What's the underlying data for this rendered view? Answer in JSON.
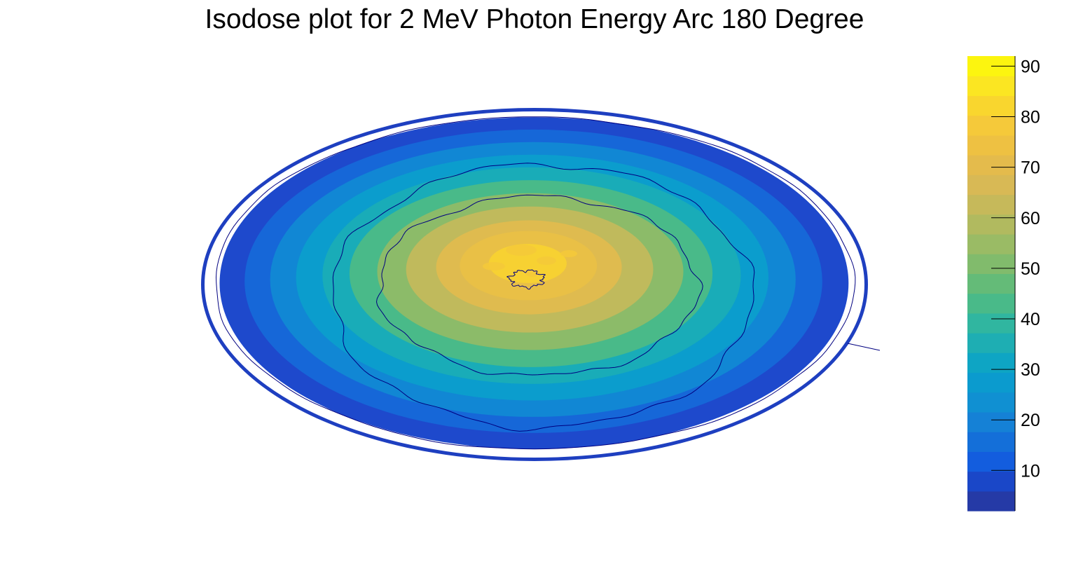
{
  "chart_data": {
    "type": "heatmap",
    "title": "Isodose plot for 2 MeV Photon Energy Arc 180 Degree",
    "xlabel": "",
    "ylabel": "",
    "zlim": [
      2,
      92
    ],
    "color_scale_ticks": [
      10,
      20,
      30,
      40,
      50,
      60,
      70,
      80,
      90
    ],
    "palette": [
      "#253aa6",
      "#1a47c8",
      "#135dde",
      "#146fd9",
      "#1581d6",
      "#1090d2",
      "#0b9bce",
      "#0ea5c4",
      "#1eaeb3",
      "#30b6a0",
      "#49ba89",
      "#64bb78",
      "#81bb6c",
      "#9abb65",
      "#b1ba5f",
      "#c6b95a",
      "#d8b955",
      "#e4bb4c",
      "#eec142",
      "#f5c93a",
      "#f9d62e",
      "#fbe622",
      "#fcf50f"
    ],
    "dose_rings": [
      {
        "value": 8,
        "color": "#1e49cc"
      },
      {
        "value": 16,
        "color": "#1667d8"
      },
      {
        "value": 24,
        "color": "#1187d4"
      },
      {
        "value": 32,
        "color": "#0b9dcd"
      },
      {
        "value": 40,
        "color": "#19acb8"
      },
      {
        "value": 48,
        "color": "#49ba89"
      },
      {
        "value": 56,
        "color": "#8cbb69"
      },
      {
        "value": 64,
        "color": "#c0ba5c"
      },
      {
        "value": 72,
        "color": "#dfbb4f"
      },
      {
        "value": 78,
        "color": "#e9c046"
      },
      {
        "value": 86,
        "color": "#f7d132"
      }
    ],
    "contour_color": "#000080",
    "contour_levels": [
      10,
      30,
      50,
      70
    ]
  }
}
